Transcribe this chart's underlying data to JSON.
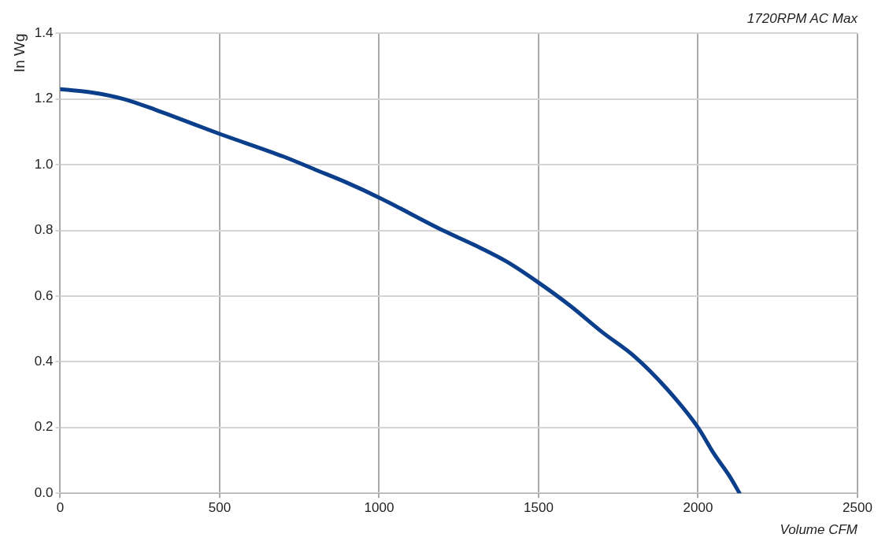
{
  "chart_data": {
    "type": "line",
    "title": "1720RPM AC Max",
    "xlabel": "Volume CFM",
    "ylabel": "In Wg",
    "x": [
      0,
      100,
      200,
      300,
      500,
      700,
      800,
      900,
      1000,
      1200,
      1300,
      1400,
      1500,
      1600,
      1700,
      1800,
      1900,
      2000,
      2050,
      2100,
      2130
    ],
    "series": [
      {
        "color": "#0b3f8c",
        "values": [
          1.23,
          1.22,
          1.2,
          1.167,
          1.094,
          1.025,
          0.985,
          0.945,
          0.9,
          0.8,
          0.755,
          0.705,
          0.641,
          0.57,
          0.49,
          0.417,
          0.32,
          0.2,
          0.12,
          0.05,
          0
        ]
      }
    ],
    "xlim": [
      0,
      2500
    ],
    "xticks": [
      0,
      500,
      1000,
      1500,
      2000,
      2500
    ],
    "ylim": [
      0,
      1.4
    ],
    "yticks": [
      {
        "value": 0,
        "label": "0.0"
      },
      {
        "value": 0.2,
        "label": "0.2"
      },
      {
        "value": 0.4,
        "label": "0.4"
      },
      {
        "value": 0.6,
        "label": "0.6"
      },
      {
        "value": 0.8,
        "label": "0.8"
      },
      {
        "value": 1,
        "label": "1.0"
      },
      {
        "value": 1.2,
        "label": "1.2"
      },
      {
        "value": 1.4,
        "label": "1.4"
      }
    ],
    "grid": true,
    "legend": false,
    "marker": "none",
    "line_style": "solid"
  }
}
